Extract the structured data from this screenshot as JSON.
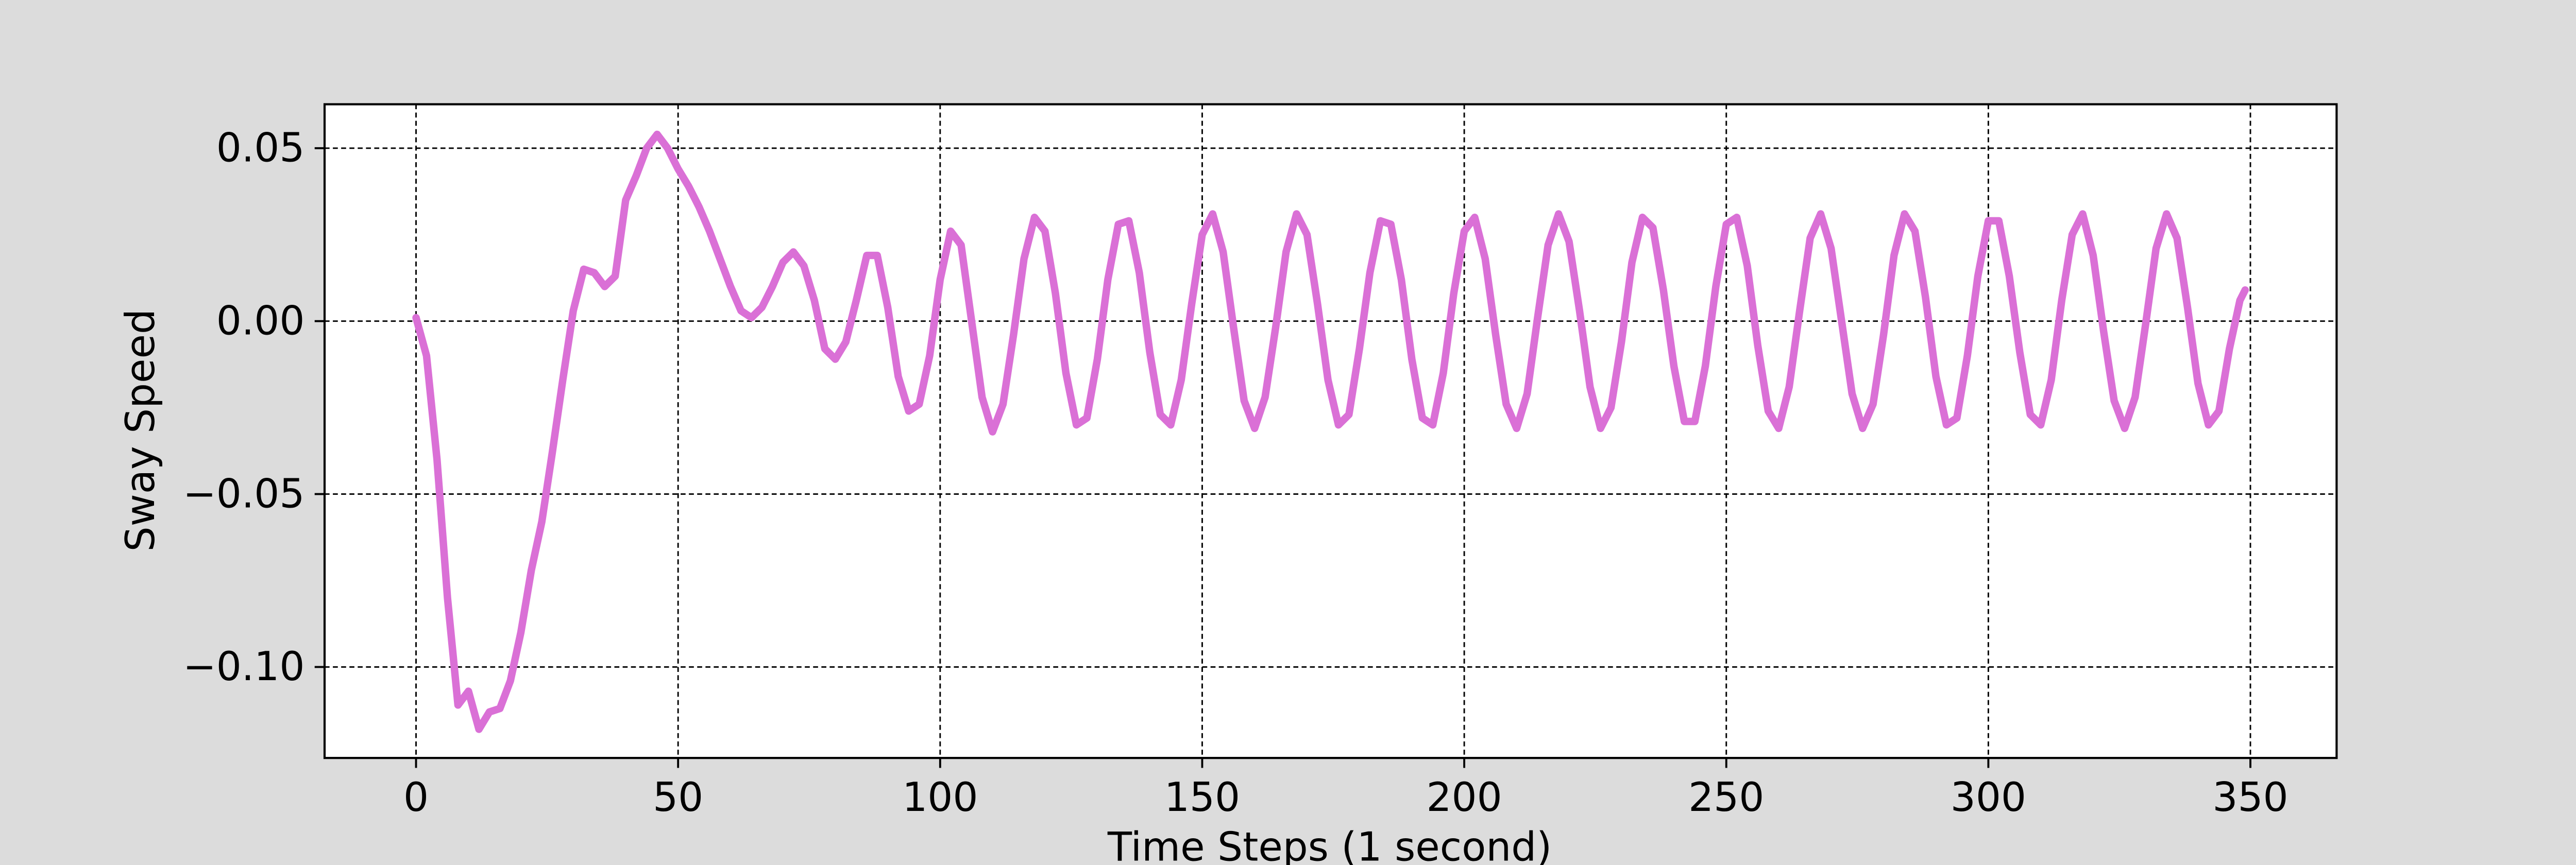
{
  "chart_data": {
    "type": "line",
    "xlabel": "Time Steps (1 second)",
    "ylabel": "Sway Speed",
    "x": [
      0,
      2,
      4,
      6,
      8,
      10,
      12,
      14,
      16,
      18,
      20,
      22,
      24,
      26,
      28,
      30,
      32,
      34,
      36,
      38,
      40,
      42,
      44,
      46,
      48,
      50,
      52,
      54,
      56,
      58,
      60,
      62,
      64,
      66,
      68,
      70,
      72,
      74,
      76,
      78,
      80,
      82,
      84,
      86,
      88,
      90,
      92,
      94,
      96,
      98,
      100,
      102,
      104,
      106,
      108,
      110,
      112,
      114,
      116,
      118,
      120,
      122,
      124,
      126,
      128,
      130,
      132,
      134,
      136,
      138,
      140,
      142,
      144,
      146,
      148,
      150,
      152,
      154,
      156,
      158,
      160,
      162,
      164,
      166,
      168,
      170,
      172,
      174,
      176,
      178,
      180,
      182,
      184,
      186,
      188,
      190,
      192,
      194,
      196,
      198,
      200,
      202,
      204,
      206,
      208,
      210,
      212,
      214,
      216,
      218,
      220,
      222,
      224,
      226,
      228,
      230,
      232,
      234,
      236,
      238,
      240,
      242,
      244,
      246,
      248,
      250,
      252,
      254,
      256,
      258,
      260,
      262,
      264,
      266,
      268,
      270,
      272,
      274,
      276,
      278,
      280,
      282,
      284,
      286,
      288,
      290,
      292,
      294,
      296,
      298,
      300,
      302,
      304,
      306,
      308,
      310,
      312,
      314,
      316,
      318,
      320,
      322,
      324,
      326,
      328,
      330,
      332,
      334,
      336,
      338,
      340,
      342,
      344,
      346,
      348,
      349
    ],
    "series": [
      {
        "name": "Sway Speed",
        "color": "#da70d6",
        "values": [
          0.001,
          -0.01,
          -0.04,
          -0.08,
          -0.111,
          -0.107,
          -0.118,
          -0.113,
          -0.112,
          -0.104,
          -0.09,
          -0.072,
          -0.058,
          -0.038,
          -0.017,
          0.003,
          0.015,
          0.014,
          0.01,
          0.013,
          0.035,
          0.042,
          0.05,
          0.054,
          0.05,
          0.044,
          0.039,
          0.033,
          0.026,
          0.018,
          0.01,
          0.003,
          0.001,
          0.004,
          0.01,
          0.017,
          0.02,
          0.016,
          0.006,
          -0.008,
          -0.011,
          -0.006,
          0.006,
          0.019,
          0.019,
          0.004,
          -0.016,
          -0.026,
          -0.024,
          -0.01,
          0.012,
          0.026,
          0.022,
          0.0,
          -0.022,
          -0.032,
          -0.024,
          -0.004,
          0.018,
          0.03,
          0.026,
          0.008,
          -0.015,
          -0.03,
          -0.028,
          -0.011,
          0.012,
          0.028,
          0.029,
          0.014,
          -0.009,
          -0.027,
          -0.03,
          -0.017,
          0.005,
          0.025,
          0.031,
          0.02,
          -0.002,
          -0.023,
          -0.031,
          -0.022,
          -0.002,
          0.02,
          0.031,
          0.025,
          0.005,
          -0.017,
          -0.03,
          -0.027,
          -0.008,
          0.014,
          0.029,
          0.028,
          0.012,
          -0.011,
          -0.028,
          -0.03,
          -0.015,
          0.008,
          0.026,
          0.03,
          0.018,
          -0.004,
          -0.024,
          -0.031,
          -0.021,
          0.001,
          0.022,
          0.031,
          0.023,
          0.003,
          -0.019,
          -0.031,
          -0.025,
          -0.006,
          0.017,
          0.03,
          0.027,
          0.009,
          -0.013,
          -0.029,
          -0.029,
          -0.013,
          0.01,
          0.028,
          0.03,
          0.016,
          -0.007,
          -0.026,
          -0.031,
          -0.019,
          0.003,
          0.024,
          0.031,
          0.021,
          0.0,
          -0.021,
          -0.031,
          -0.024,
          -0.004,
          0.019,
          0.031,
          0.026,
          0.007,
          -0.016,
          -0.03,
          -0.028,
          -0.01,
          0.013,
          0.029,
          0.029,
          0.013,
          -0.009,
          -0.027,
          -0.03,
          -0.017,
          0.006,
          0.025,
          0.031,
          0.019,
          -0.003,
          -0.023,
          -0.031,
          -0.022,
          -0.001,
          0.021,
          0.031,
          0.024,
          0.004,
          -0.018,
          -0.03,
          -0.026,
          -0.008,
          0.006,
          0.009
        ]
      }
    ],
    "xlim": [
      -17.45,
      366.45
    ],
    "xticks": [
      0,
      50,
      100,
      150,
      200,
      250,
      300,
      350
    ],
    "ylim": [
      -0.1263,
      0.0627
    ],
    "yticks": [
      {
        "value": -0.1,
        "label": "−0.10"
      },
      {
        "value": -0.05,
        "label": "−0.05"
      },
      {
        "value": 0,
        "label": "0.00"
      },
      {
        "value": 0.05,
        "label": "0.05"
      }
    ],
    "grid": true
  }
}
